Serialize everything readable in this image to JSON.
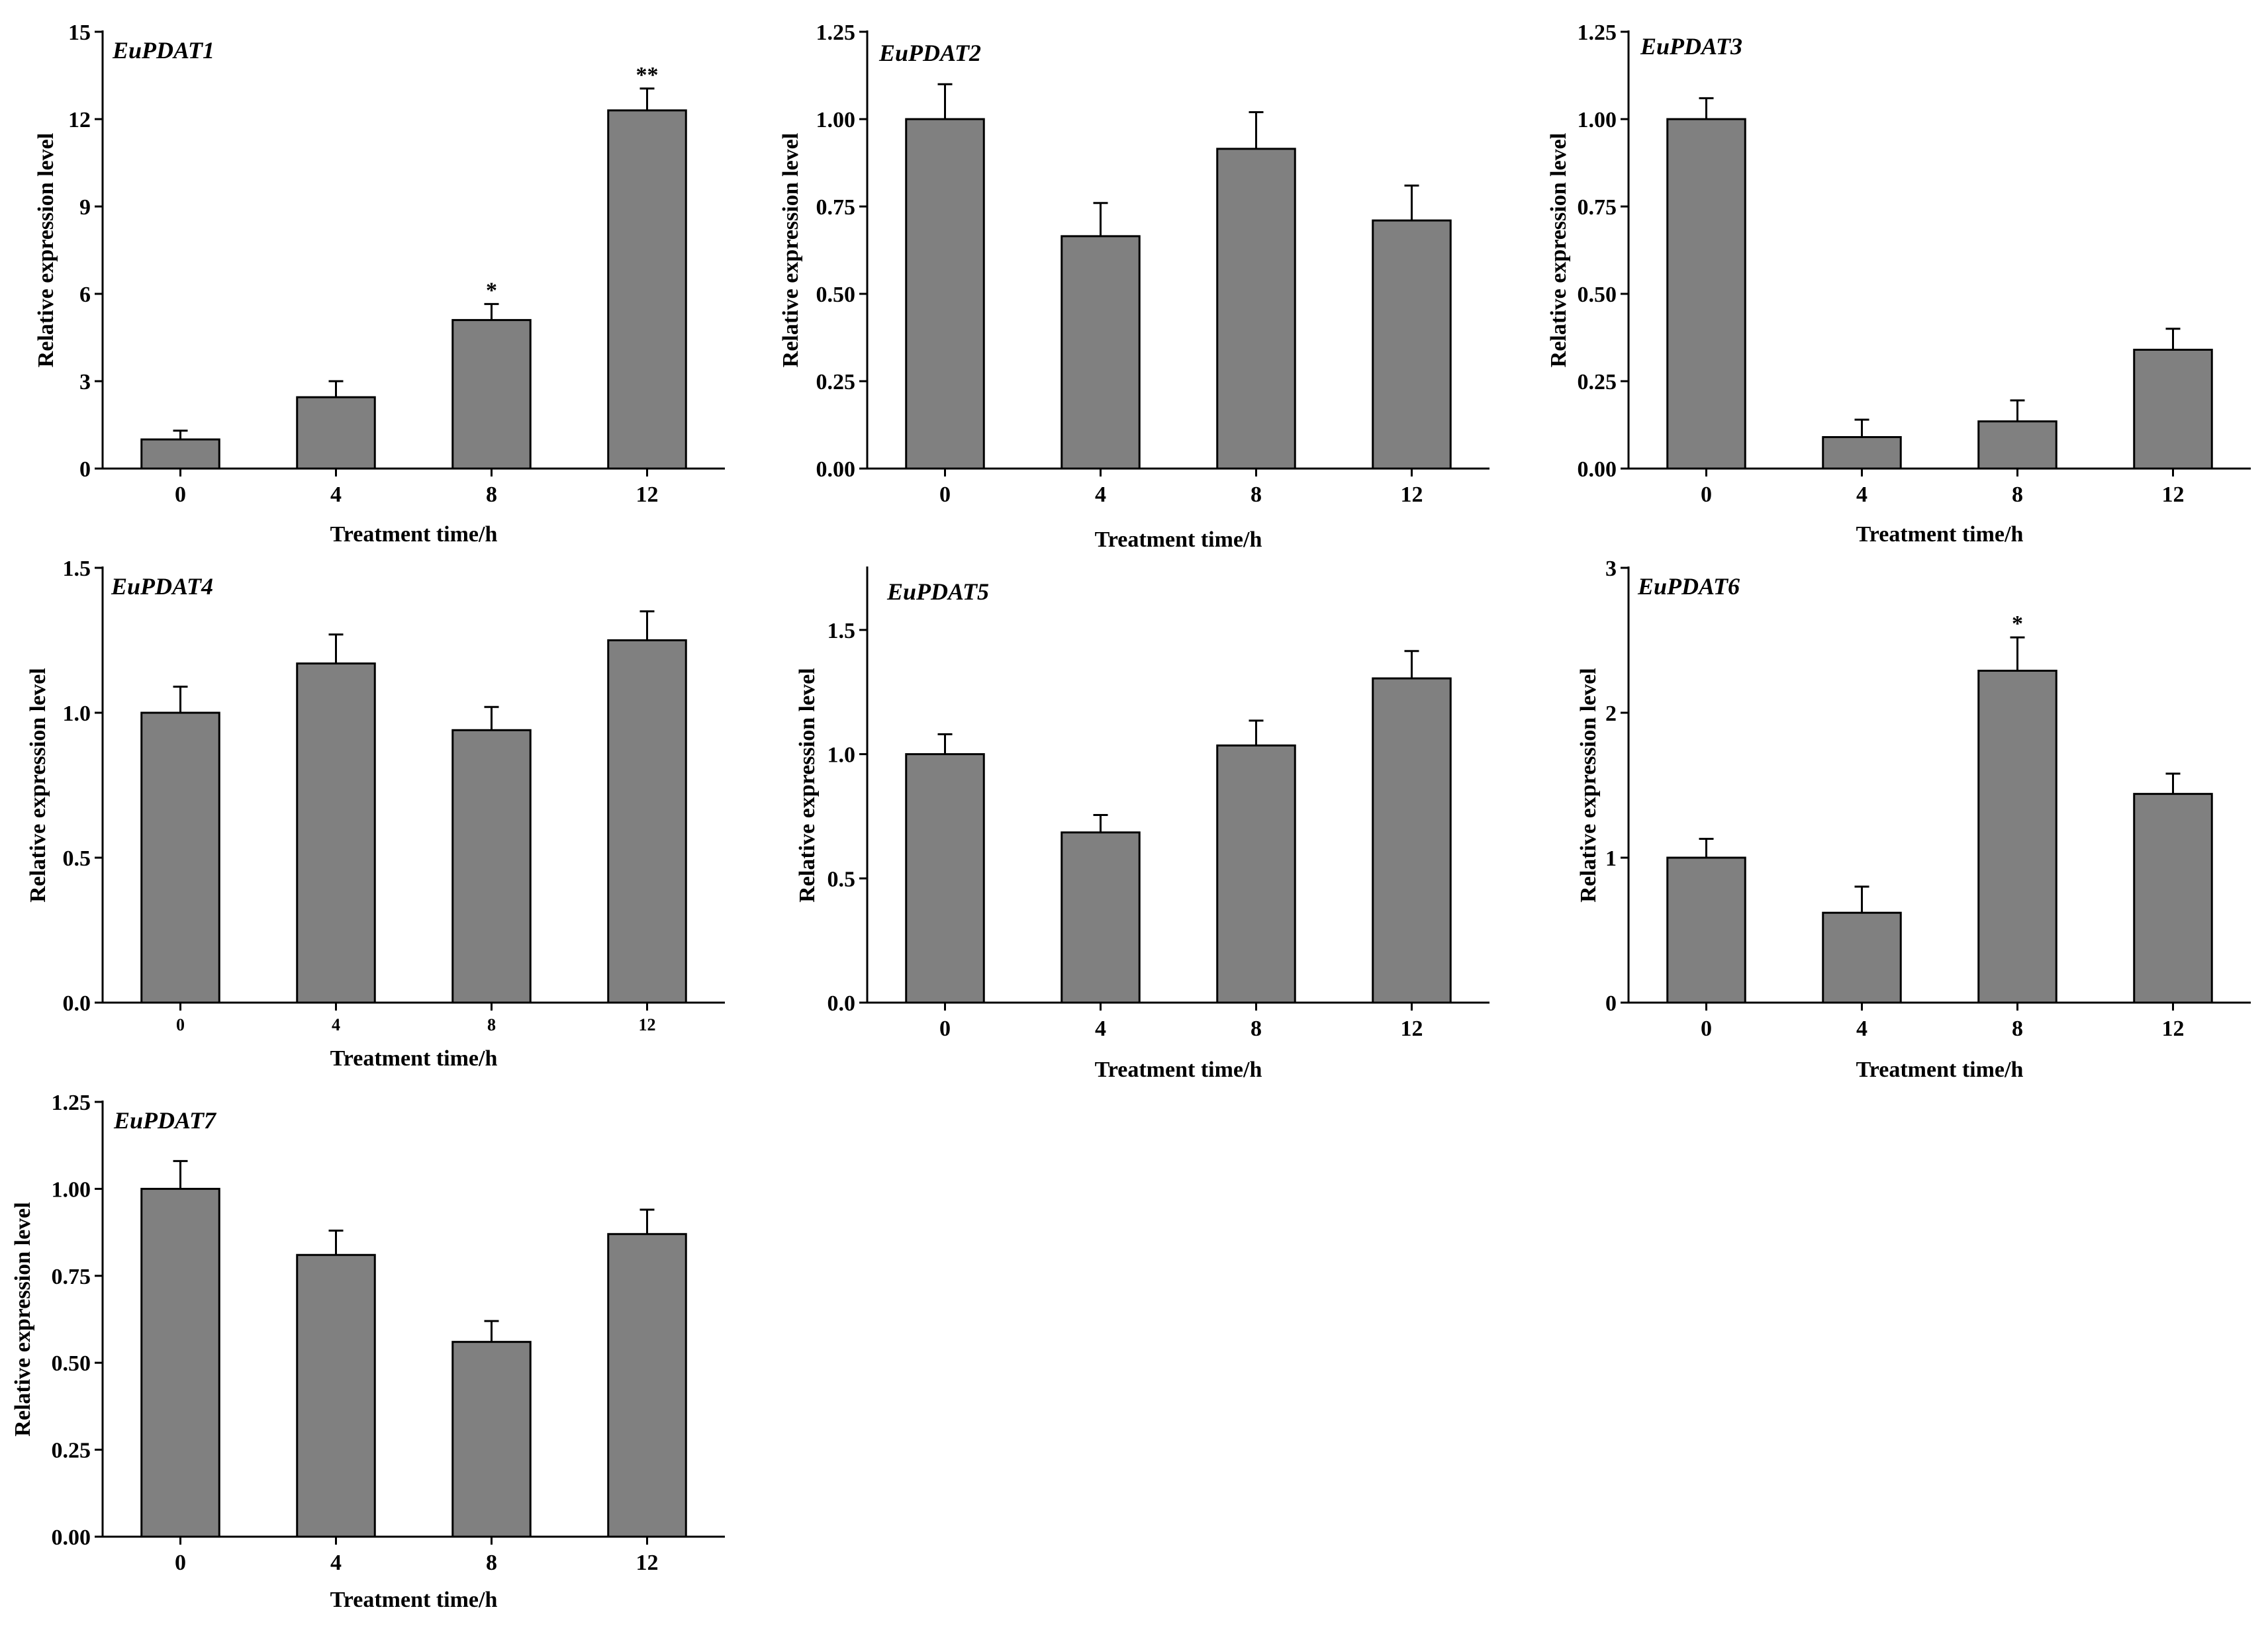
{
  "figure": {
    "background": "#ffffff",
    "bar_color": "#808080",
    "edge_color": "#000000"
  },
  "chart_data": [
    {
      "type": "bar",
      "title": "EuPDAT1",
      "xlabel": "Treatment time/h",
      "ylabel": "Relative expression level",
      "categories": [
        "0",
        "4",
        "8",
        "12"
      ],
      "values": [
        1.0,
        2.45,
        5.1,
        12.3
      ],
      "errors": [
        0.3,
        0.55,
        0.55,
        0.75
      ],
      "significance": [
        "",
        "",
        "*",
        "**"
      ],
      "ylim": [
        0,
        15
      ],
      "yticks": [
        0,
        3,
        6,
        9,
        12,
        15
      ],
      "ytick_labels": [
        "0",
        "3",
        "6",
        "9",
        "12",
        "15"
      ]
    },
    {
      "type": "bar",
      "title": "EuPDAT2",
      "xlabel": "Treatment time/h",
      "ylabel": "Relative expression level",
      "categories": [
        "0",
        "4",
        "8",
        "12"
      ],
      "values": [
        1.0,
        0.665,
        0.915,
        0.71
      ],
      "errors": [
        0.1,
        0.095,
        0.105,
        0.1
      ],
      "significance": [
        "",
        "",
        "",
        ""
      ],
      "ylim": [
        0,
        1.25
      ],
      "yticks": [
        0,
        0.25,
        0.5,
        0.75,
        1.0,
        1.25
      ],
      "ytick_labels": [
        "0.00",
        "0.25",
        "0.50",
        "0.75",
        "1.00",
        "1.25"
      ]
    },
    {
      "type": "bar",
      "title": "EuPDAT3",
      "xlabel": "Treatment time/h",
      "ylabel": "Relative expression level",
      "categories": [
        "0",
        "4",
        "8",
        "12"
      ],
      "values": [
        1.0,
        0.09,
        0.135,
        0.34
      ],
      "errors": [
        0.06,
        0.05,
        0.06,
        0.06
      ],
      "significance": [
        "",
        "",
        "",
        ""
      ],
      "ylim": [
        0,
        1.25
      ],
      "yticks": [
        0,
        0.25,
        0.5,
        0.75,
        1.0,
        1.25
      ],
      "ytick_labels": [
        "0.00",
        "0.25",
        "0.50",
        "0.75",
        "1.00",
        "1.25"
      ]
    },
    {
      "type": "bar",
      "title": "EuPDAT4",
      "xlabel": "Treatment time/h",
      "ylabel": "Relative expression level",
      "categories": [
        "0",
        "4",
        "8",
        "12"
      ],
      "values": [
        1.0,
        1.17,
        0.94,
        1.25
      ],
      "errors": [
        0.09,
        0.1,
        0.08,
        0.1
      ],
      "significance": [
        "",
        "",
        "",
        ""
      ],
      "ylim": [
        0,
        1.5
      ],
      "yticks": [
        0,
        0.5,
        1.0,
        1.5
      ],
      "ytick_labels": [
        "0.0",
        "0.5",
        "1.0",
        "1.5"
      ]
    },
    {
      "type": "bar",
      "title": "EuPDAT5",
      "xlabel": "Treatment time/h",
      "ylabel": "Relative expression level",
      "categories": [
        "0",
        "4",
        "8",
        "12"
      ],
      "values": [
        1.0,
        0.685,
        1.035,
        1.305
      ],
      "errors": [
        0.08,
        0.07,
        0.1,
        0.11
      ],
      "significance": [
        "",
        "",
        "",
        ""
      ],
      "ylim": [
        0,
        1.75
      ],
      "yticks": [
        0,
        0.5,
        1.0,
        1.5
      ],
      "ytick_labels": [
        "0.0",
        "0.5",
        "1.0",
        "1.5"
      ]
    },
    {
      "type": "bar",
      "title": "EuPDAT6",
      "xlabel": "Treatment time/h",
      "ylabel": "Relative expression level",
      "categories": [
        "0",
        "4",
        "8",
        "12"
      ],
      "values": [
        1.0,
        0.62,
        2.29,
        1.44
      ],
      "errors": [
        0.13,
        0.18,
        0.23,
        0.14
      ],
      "significance": [
        "",
        "",
        "*",
        ""
      ],
      "ylim": [
        0,
        3
      ],
      "yticks": [
        0,
        1,
        2,
        3
      ],
      "ytick_labels": [
        "0",
        "1",
        "2",
        "3"
      ]
    },
    {
      "type": "bar",
      "title": "EuPDAT7",
      "xlabel": "Treatment time/h",
      "ylabel": "Relative expression level",
      "categories": [
        "0",
        "4",
        "8",
        "12"
      ],
      "values": [
        1.0,
        0.81,
        0.56,
        0.87
      ],
      "errors": [
        0.08,
        0.07,
        0.06,
        0.07
      ],
      "significance": [
        "",
        "",
        "",
        ""
      ],
      "ylim": [
        0,
        1.25
      ],
      "yticks": [
        0,
        0.25,
        0.5,
        0.75,
        1.0,
        1.25
      ],
      "ytick_labels": [
        "0.00",
        "0.25",
        "0.50",
        "0.75",
        "1.00",
        "1.25"
      ]
    }
  ]
}
